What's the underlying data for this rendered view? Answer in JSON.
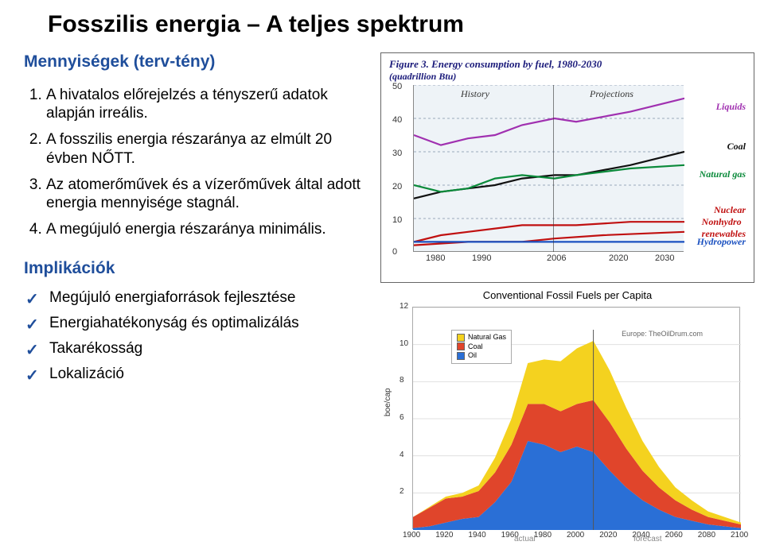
{
  "title": "Fosszilis energia – A teljes spektrum",
  "subtitle": "Mennyiségek (terv-tény)",
  "points": [
    "A hivatalos előrejelzés a tényszerű adatok alapján irreális.",
    "A fosszilis energia részaránya az elmúlt 20 évben NŐTT.",
    "Az atomerőművek és a vízerőművek által adott energia mennyisége stagnál.",
    "A megújuló energia részaránya minimális."
  ],
  "implications_title": "Implikációk",
  "implications": [
    "Megújuló energiaforrások fejlesztése",
    "Energiahatékonyság és optimalizálás",
    "Takarékosság",
    "Lokalizáció"
  ],
  "fig1": {
    "title": "Figure 3. Energy consumption by fuel, 1980-2030",
    "subtitle": "(quadrillion Btu)",
    "history_label": "History",
    "projections_label": "Projections",
    "y_ticks": [
      "50",
      "40",
      "30",
      "20",
      "10",
      "0"
    ],
    "x_ticks": [
      "1980",
      "1990",
      "2006",
      "2020",
      "2030"
    ],
    "plot_bg": "#eef3f7",
    "series_labels": {
      "liquids": "Liquids",
      "coal": "Coal",
      "natural_gas": "Natural gas",
      "nuclear": "Nuclear",
      "nonhydro": "Nonhydro",
      "renewables": "renewables",
      "hydro": "Hydropower"
    },
    "colors": {
      "liquids": "#a030b0",
      "coal": "#111111",
      "natural_gas": "#0a8a3a",
      "nuclear": "#c01010",
      "renewables": "#c01010",
      "hydro": "#1a50c0"
    },
    "ylim": [
      0,
      50
    ],
    "xlim": [
      1980,
      2030
    ],
    "series": {
      "liquids": [
        [
          1980,
          35
        ],
        [
          1985,
          32
        ],
        [
          1990,
          34
        ],
        [
          1995,
          35
        ],
        [
          2000,
          38
        ],
        [
          2006,
          40
        ],
        [
          2010,
          39
        ],
        [
          2020,
          42
        ],
        [
          2030,
          46
        ]
      ],
      "coal": [
        [
          1980,
          16
        ],
        [
          1985,
          18
        ],
        [
          1990,
          19
        ],
        [
          1995,
          20
        ],
        [
          2000,
          22
        ],
        [
          2006,
          23
        ],
        [
          2010,
          23
        ],
        [
          2020,
          26
        ],
        [
          2030,
          30
        ]
      ],
      "natural_gas": [
        [
          1980,
          20
        ],
        [
          1985,
          18
        ],
        [
          1990,
          19
        ],
        [
          1995,
          22
        ],
        [
          2000,
          23
        ],
        [
          2006,
          22
        ],
        [
          2010,
          23
        ],
        [
          2020,
          25
        ],
        [
          2030,
          26
        ]
      ],
      "nuclear": [
        [
          1980,
          3
        ],
        [
          1985,
          5
        ],
        [
          1990,
          6
        ],
        [
          1995,
          7
        ],
        [
          2000,
          8
        ],
        [
          2006,
          8
        ],
        [
          2010,
          8
        ],
        [
          2020,
          9
        ],
        [
          2030,
          9
        ]
      ],
      "renewables": [
        [
          1980,
          2
        ],
        [
          1990,
          3
        ],
        [
          2000,
          3
        ],
        [
          2006,
          4
        ],
        [
          2015,
          5
        ],
        [
          2030,
          6
        ]
      ],
      "hydro": [
        [
          1980,
          3
        ],
        [
          1990,
          3
        ],
        [
          2000,
          3
        ],
        [
          2006,
          3
        ],
        [
          2020,
          3
        ],
        [
          2030,
          3
        ]
      ]
    }
  },
  "fig2": {
    "title": "Conventional Fossil Fuels per Capita",
    "ylabel": "boe/cap",
    "credit": "Europe: TheOilDrum.com",
    "y_ticks": [
      "12",
      "10",
      "8",
      "6",
      "4",
      "2"
    ],
    "x_ticks": [
      "1900",
      "1920",
      "1940",
      "1960",
      "1980",
      "2000",
      "2020",
      "2040",
      "2060",
      "2080",
      "2100"
    ],
    "xlim": [
      1900,
      2100
    ],
    "ylim": [
      0,
      12
    ],
    "actual_label": "actual",
    "forecast_label": "forecast",
    "legend": [
      {
        "label": "Natural Gas",
        "color": "#f4d21f"
      },
      {
        "label": "Coal",
        "color": "#e0452b"
      },
      {
        "label": "Oil",
        "color": "#2a6fd6"
      }
    ],
    "colors": {
      "gas": "#f4d21f",
      "coal": "#e0452b",
      "oil": "#2a6fd6",
      "grid": "#e0e0e0"
    },
    "stack": {
      "x": [
        1900,
        1910,
        1920,
        1930,
        1940,
        1950,
        1960,
        1970,
        1980,
        1990,
        2000,
        2010,
        2020,
        2030,
        2040,
        2050,
        2060,
        2070,
        2080,
        2090,
        2100
      ],
      "oil": [
        0.1,
        0.2,
        0.4,
        0.6,
        0.7,
        1.5,
        2.6,
        4.8,
        4.6,
        4.2,
        4.5,
        4.2,
        3.2,
        2.3,
        1.6,
        1.1,
        0.7,
        0.5,
        0.3,
        0.2,
        0.1
      ],
      "coal": [
        0.6,
        1.0,
        1.3,
        1.2,
        1.4,
        1.6,
        2.0,
        2.0,
        2.2,
        2.2,
        2.3,
        2.8,
        2.6,
        2.1,
        1.6,
        1.2,
        0.9,
        0.6,
        0.4,
        0.3,
        0.2
      ],
      "gas": [
        0.0,
        0.05,
        0.1,
        0.2,
        0.3,
        0.8,
        1.4,
        2.2,
        2.4,
        2.7,
        3.0,
        3.2,
        2.8,
        2.2,
        1.6,
        1.1,
        0.7,
        0.5,
        0.3,
        0.2,
        0.1
      ]
    }
  }
}
